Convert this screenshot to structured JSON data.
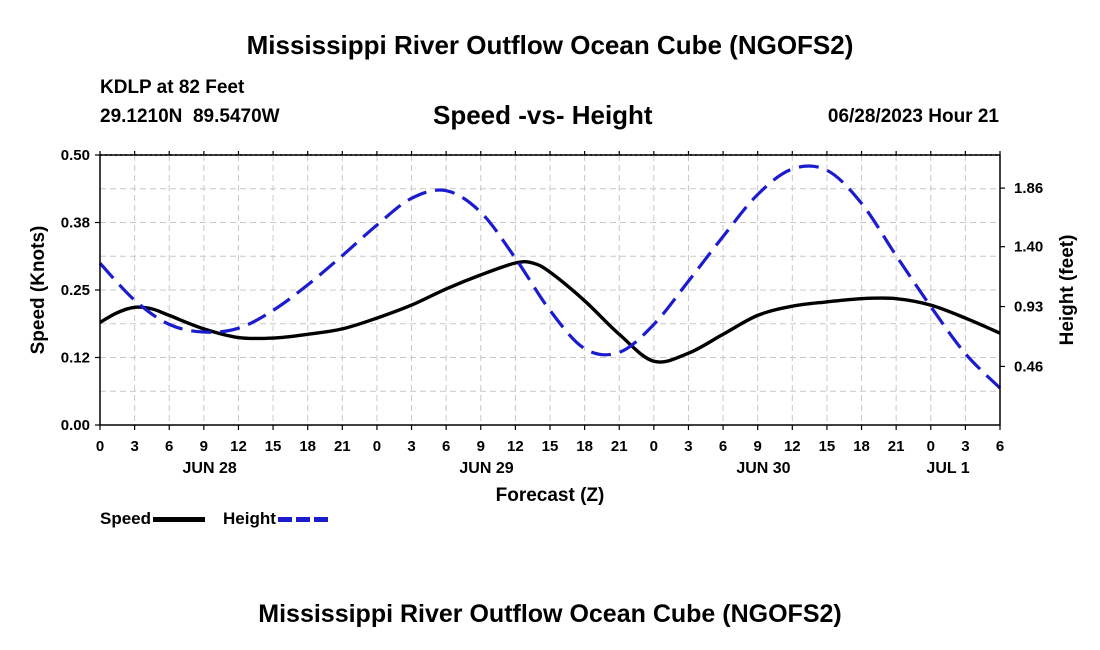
{
  "page_title": "Mississippi River Outflow Ocean Cube (NGOFS2)",
  "station": {
    "name": "KDLP at 82 Feet",
    "coords": "29.1210N  89.5470W",
    "datetime": "06/28/2023 Hour 21"
  },
  "footer_title": "Mississippi River Outflow Ocean Cube (NGOFS2)",
  "colors": {
    "speed": "#000000",
    "height": "#1c1ccf",
    "grid": "#c8c8c8"
  },
  "chart_data": {
    "type": "line",
    "title": "Speed -vs- Height",
    "xlabel": "Forecast (Z)",
    "ylabel_left": "Speed (Knots)",
    "ylabel_right": "Height (feet)",
    "x_range_hours": [
      0,
      78
    ],
    "x_tick_step_hours": 3,
    "x_tick_labels": [
      "0",
      "3",
      "6",
      "9",
      "12",
      "15",
      "18",
      "21",
      "0",
      "3",
      "6",
      "9",
      "12",
      "15",
      "18",
      "21",
      "0",
      "3",
      "6",
      "9",
      "12",
      "15",
      "18",
      "21",
      "0",
      "3",
      "6"
    ],
    "date_labels": [
      {
        "label": "JUN 28",
        "hour": 9.5
      },
      {
        "label": "JUN 29",
        "hour": 33.5
      },
      {
        "label": "JUN 30",
        "hour": 57.5
      },
      {
        "label": "JUL 1",
        "hour": 73.5
      }
    ],
    "left_axis": {
      "ylim": [
        0,
        0.5
      ],
      "ticks": [
        "0.00",
        "0.12",
        "0.25",
        "0.38",
        "0.50"
      ]
    },
    "right_axis": {
      "ylim": [
        0,
        2.12
      ],
      "ticks": [
        "0.46",
        "0.93",
        "1.40",
        "1.86"
      ]
    },
    "grid": true,
    "series": [
      {
        "name": "Speed",
        "axis": "left",
        "style": "solid",
        "x": [
          0,
          1.5,
          3,
          4.5,
          6,
          9,
          12,
          15,
          18,
          21,
          24,
          27,
          30,
          33,
          36,
          37.5,
          39,
          42,
          45,
          48,
          51,
          54,
          57,
          60,
          63,
          66,
          69,
          72,
          75,
          78
        ],
        "values": [
          0.19,
          0.208,
          0.218,
          0.215,
          0.203,
          0.178,
          0.162,
          0.161,
          0.168,
          0.178,
          0.198,
          0.222,
          0.252,
          0.278,
          0.3,
          0.3,
          0.283,
          0.23,
          0.168,
          0.118,
          0.133,
          0.168,
          0.203,
          0.22,
          0.228,
          0.234,
          0.234,
          0.222,
          0.198,
          0.17
        ]
      },
      {
        "name": "Height",
        "axis": "right",
        "style": "dashed",
        "x": [
          0,
          3,
          6,
          9,
          12,
          15,
          18,
          21,
          24,
          27,
          30,
          33,
          36,
          39,
          42,
          45,
          48,
          51,
          54,
          57,
          60,
          63,
          66,
          69,
          72,
          75,
          78
        ],
        "values": [
          1.27,
          0.98,
          0.79,
          0.73,
          0.76,
          0.9,
          1.1,
          1.33,
          1.57,
          1.78,
          1.84,
          1.67,
          1.31,
          0.9,
          0.6,
          0.57,
          0.79,
          1.13,
          1.48,
          1.81,
          2.01,
          2.0,
          1.74,
          1.33,
          0.93,
          0.56,
          0.29
        ]
      }
    ],
    "legend": [
      {
        "name": "Speed",
        "style": "solid"
      },
      {
        "name": "Height",
        "style": "dashed"
      }
    ]
  }
}
